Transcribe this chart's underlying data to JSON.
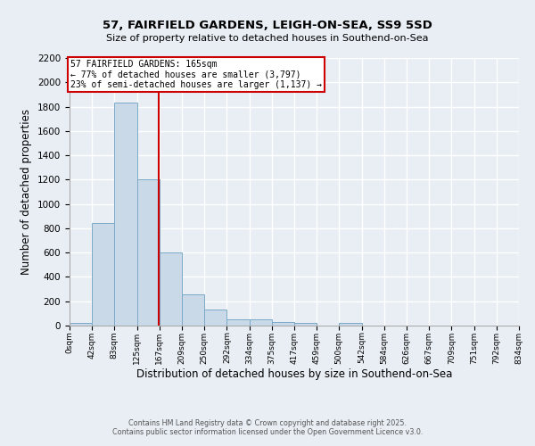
{
  "title1": "57, FAIRFIELD GARDENS, LEIGH-ON-SEA, SS9 5SD",
  "title2": "Size of property relative to detached houses in Southend-on-Sea",
  "xlabel": "Distribution of detached houses by size in Southend-on-Sea",
  "ylabel": "Number of detached properties",
  "bar_edges": [
    0,
    42,
    83,
    125,
    167,
    209,
    250,
    292,
    334,
    375,
    417,
    459,
    500,
    542,
    584,
    626,
    667,
    709,
    751,
    792,
    834
  ],
  "bar_heights": [
    25,
    840,
    1830,
    1200,
    600,
    260,
    130,
    50,
    50,
    30,
    20,
    0,
    20,
    0,
    0,
    0,
    0,
    0,
    0,
    0
  ],
  "bar_color": "#c9d9e8",
  "bar_edge_color": "#7aaac8",
  "property_size": 165,
  "property_label": "57 FAIRFIELD GARDENS: 165sqm",
  "annotation_line1": "← 77% of detached houses are smaller (3,797)",
  "annotation_line2": "23% of semi-detached houses are larger (1,137) →",
  "annotation_box_color": "#ffffff",
  "annotation_box_edge": "#cc0000",
  "vline_color": "#cc0000",
  "ylim": [
    0,
    2200
  ],
  "yticks": [
    0,
    200,
    400,
    600,
    800,
    1000,
    1200,
    1400,
    1600,
    1800,
    2000,
    2200
  ],
  "bg_color": "#e8eef4",
  "grid_color": "#ffffff",
  "footer1": "Contains HM Land Registry data © Crown copyright and database right 2025.",
  "footer2": "Contains public sector information licensed under the Open Government Licence v3.0."
}
